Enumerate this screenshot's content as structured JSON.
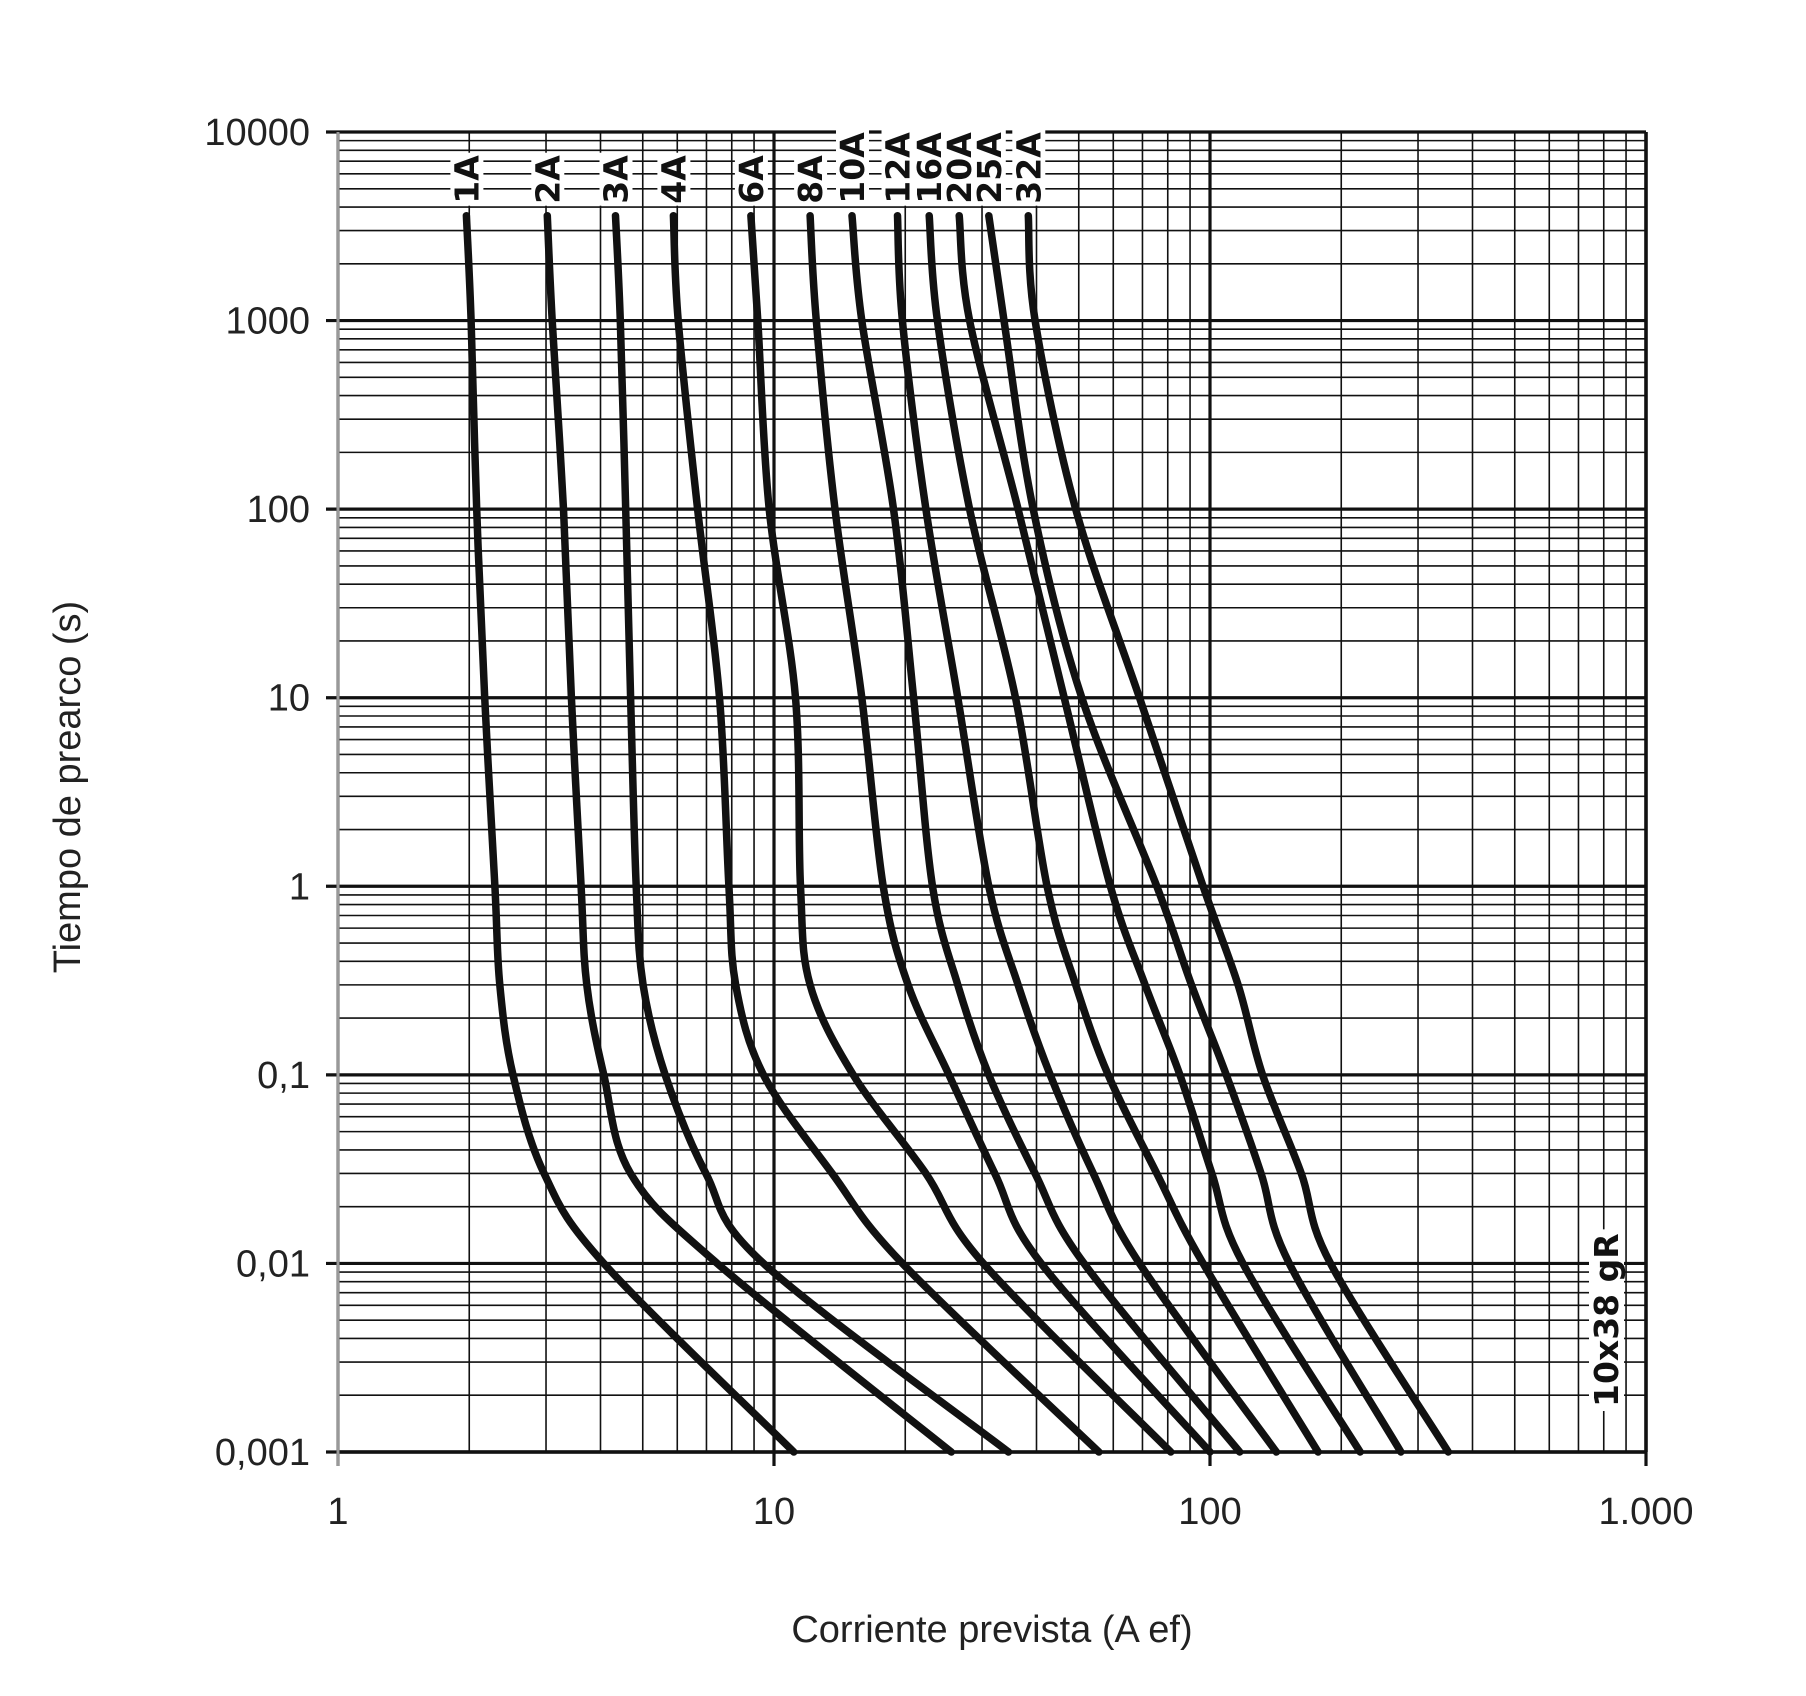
{
  "chart_data": {
    "type": "line",
    "xlabel": "Corriente prevista (A ef)",
    "ylabel": "Tiempo de prearco (s)",
    "annotation": "10x38 gR",
    "xscale": "log",
    "yscale": "log",
    "grid": true,
    "minor_grid": true,
    "color": "#111111",
    "xlim": [
      1,
      1000
    ],
    "ylim": [
      0.001,
      10000
    ],
    "xticks": [
      1,
      10,
      100,
      {
        "value": 1000,
        "label": "1.000"
      }
    ],
    "yticks": [
      10000,
      1000,
      100,
      10,
      1,
      {
        "value": 0.1,
        "label": "0,1"
      },
      {
        "value": 0.01,
        "label": "0,01"
      },
      {
        "value": 0.001,
        "label": "0,001"
      }
    ],
    "series": [
      {
        "name": "1A",
        "x": [
          1.97,
          2.02,
          2.08,
          2.17,
          2.29,
          2.35,
          2.52,
          2.97,
          4.07,
          11.1
        ],
        "values": [
          3600,
          1000,
          100,
          10,
          1,
          0.3,
          0.1,
          0.03,
          0.01,
          0.001
        ]
      },
      {
        "name": "2A",
        "x": [
          3.02,
          3.1,
          3.29,
          3.43,
          3.61,
          3.72,
          4.07,
          4.69,
          7.41,
          25.5
        ],
        "values": [
          3600,
          1000,
          100,
          10,
          1,
          0.3,
          0.1,
          0.03,
          0.01,
          0.001
        ]
      },
      {
        "name": "3A",
        "x": [
          4.33,
          4.44,
          4.57,
          4.69,
          4.83,
          5.01,
          5.63,
          6.98,
          9.46,
          34.5
        ],
        "values": [
          3600,
          1000,
          100,
          10,
          1,
          0.3,
          0.1,
          0.03,
          0.01,
          0.001
        ]
      },
      {
        "name": "4A",
        "x": [
          5.88,
          6.03,
          6.68,
          7.5,
          7.88,
          8.17,
          9.46,
          13.6,
          19.7,
          55.6
        ],
        "values": [
          3600,
          1000,
          100,
          10,
          1,
          0.3,
          0.1,
          0.03,
          0.01,
          0.001
        ]
      },
      {
        "name": "6A",
        "x": [
          8.85,
          9.18,
          9.75,
          11.2,
          11.5,
          12.1,
          15.2,
          22.3,
          30.2,
          81.3
        ],
        "values": [
          3600,
          1000,
          100,
          10,
          1,
          0.3,
          0.1,
          0.03,
          0.01,
          0.001
        ]
      },
      {
        "name": "8A",
        "x": [
          12.1,
          12.5,
          13.8,
          15.9,
          17.8,
          20.3,
          25.2,
          32.1,
          41.0,
          100
        ],
        "values": [
          3600,
          1000,
          100,
          10,
          1,
          0.3,
          0.1,
          0.03,
          0.01,
          0.001
        ]
      },
      {
        "name": "10A",
        "x": [
          15.1,
          15.9,
          18.8,
          20.9,
          23.1,
          26.4,
          31.1,
          39.7,
          51.4,
          117
        ],
        "values": [
          3600,
          1000,
          100,
          10,
          1,
          0.3,
          0.1,
          0.03,
          0.01,
          0.001
        ]
      },
      {
        "name": "12A",
        "x": [
          19.2,
          19.7,
          22.3,
          26.4,
          31.1,
          36.3,
          43.0,
          54.0,
          68.9,
          142
        ],
        "values": [
          3600,
          1000,
          100,
          10,
          1,
          0.3,
          0.1,
          0.03,
          0.01,
          0.001
        ]
      },
      {
        "name": "16A",
        "x": [
          22.7,
          23.7,
          28.1,
          35.8,
          42.3,
          49.2,
          58.4,
          75.5,
          96.4,
          177
        ],
        "values": [
          3600,
          1000,
          100,
          10,
          1,
          0.3,
          0.1,
          0.03,
          0.01,
          0.001
        ]
      },
      {
        "name": "20A",
        "x": [
          26.6,
          28.1,
          36.3,
          46.3,
          59.1,
          71.0,
          85.3,
          101,
          119,
          221
        ],
        "values": [
          3600,
          1000,
          100,
          10,
          1,
          0.3,
          0.1,
          0.03,
          0.01,
          0.001
        ]
      },
      {
        "name": "25A",
        "x": [
          31.1,
          33.7,
          39.3,
          50.8,
          75.5,
          90.7,
          109,
          131,
          152,
          274
        ],
        "values": [
          3600,
          1000,
          100,
          10,
          1,
          0.3,
          0.1,
          0.03,
          0.01,
          0.001
        ]
      },
      {
        "name": "32A",
        "x": [
          38.3,
          39.7,
          49.2,
          68.9,
          96.4,
          116,
          132,
          162,
          189,
          352
        ],
        "values": [
          3600,
          1000,
          100,
          10,
          1,
          0.3,
          0.1,
          0.03,
          0.01,
          0.001
        ]
      }
    ]
  }
}
